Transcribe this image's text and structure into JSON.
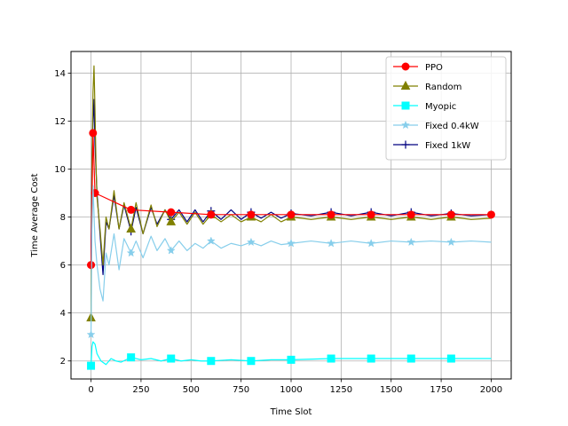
{
  "chart_data": {
    "type": "line",
    "xlabel": "Time Slot",
    "ylabel": "Time Average Cost",
    "xlim": [
      -100,
      2100
    ],
    "ylim": [
      1.25,
      14.9
    ],
    "xticks": [
      0,
      250,
      500,
      750,
      1000,
      1250,
      1500,
      1750,
      2000
    ],
    "yticks": [
      2,
      4,
      6,
      8,
      10,
      12,
      14
    ],
    "grid": true,
    "legend_position": "top-right",
    "series": [
      {
        "name": "PPO",
        "color": "#ff0000",
        "marker": "circle",
        "x": [
          0,
          10,
          20,
          200,
          400,
          600,
          800,
          1000,
          1200,
          1400,
          1600,
          1800,
          2000
        ],
        "y": [
          6.0,
          11.5,
          9.0,
          8.3,
          8.2,
          8.1,
          8.1,
          8.1,
          8.1,
          8.1,
          8.1,
          8.1,
          8.1
        ]
      },
      {
        "name": "Random",
        "color": "#808000",
        "marker": "triangle",
        "marker_x": [
          0,
          200,
          400,
          600,
          800,
          1000,
          1200,
          1400,
          1600,
          1800
        ],
        "x": [
          0,
          5,
          10,
          15,
          20,
          25,
          30,
          45,
          60,
          75,
          90,
          115,
          140,
          165,
          200,
          225,
          260,
          300,
          330,
          370,
          400,
          440,
          480,
          520,
          560,
          600,
          650,
          700,
          750,
          800,
          850,
          900,
          950,
          1000,
          1100,
          1200,
          1300,
          1400,
          1500,
          1600,
          1700,
          1800,
          1900,
          2000
        ],
        "y": [
          3.8,
          10.5,
          13.2,
          14.3,
          12.5,
          10.2,
          8.8,
          7.5,
          6.0,
          8.0,
          7.5,
          9.1,
          7.5,
          8.6,
          7.5,
          8.6,
          7.3,
          8.5,
          7.6,
          8.3,
          7.8,
          8.2,
          7.7,
          8.2,
          7.7,
          8.1,
          7.8,
          8.1,
          7.8,
          8.0,
          7.8,
          8.1,
          7.8,
          8.0,
          7.9,
          8.0,
          7.9,
          8.0,
          7.9,
          8.0,
          7.9,
          8.0,
          7.9,
          7.95
        ]
      },
      {
        "name": "Myopic",
        "color": "#00ffff",
        "marker": "square",
        "marker_x": [
          0,
          200,
          400,
          600,
          800,
          1000,
          1200,
          1400,
          1600,
          1800
        ],
        "x": [
          0,
          5,
          10,
          20,
          30,
          50,
          75,
          100,
          125,
          150,
          175,
          200,
          250,
          300,
          350,
          400,
          450,
          500,
          550,
          600,
          700,
          800,
          900,
          1000,
          1200,
          1400,
          1600,
          1800,
          2000
        ],
        "y": [
          1.8,
          2.6,
          2.8,
          2.7,
          2.3,
          2.0,
          1.85,
          2.1,
          2.0,
          1.95,
          2.05,
          2.15,
          2.05,
          2.1,
          2.0,
          2.1,
          2.0,
          2.05,
          2.0,
          2.0,
          2.05,
          2.0,
          2.05,
          2.05,
          2.1,
          2.1,
          2.1,
          2.1,
          2.1
        ]
      },
      {
        "name": "Fixed 0.4kW",
        "color": "#87ceeb",
        "marker": "star",
        "marker_x": [
          0,
          200,
          400,
          600,
          800,
          1000,
          1200,
          1400,
          1600,
          1800
        ],
        "x": [
          0,
          5,
          10,
          20,
          30,
          45,
          60,
          75,
          90,
          115,
          140,
          165,
          200,
          225,
          260,
          300,
          330,
          370,
          400,
          440,
          480,
          520,
          560,
          600,
          650,
          700,
          750,
          800,
          850,
          900,
          950,
          1000,
          1100,
          1200,
          1300,
          1400,
          1500,
          1600,
          1700,
          1800,
          1900,
          2000
        ],
        "y": [
          3.1,
          7.5,
          9.3,
          7.0,
          6.0,
          5.0,
          4.5,
          6.5,
          6.0,
          7.3,
          5.8,
          7.1,
          6.5,
          7.0,
          6.3,
          7.2,
          6.6,
          7.1,
          6.6,
          7.0,
          6.6,
          6.9,
          6.7,
          7.0,
          6.7,
          6.9,
          6.8,
          6.95,
          6.8,
          7.0,
          6.85,
          6.9,
          7.0,
          6.9,
          7.0,
          6.9,
          7.0,
          6.95,
          7.0,
          6.95,
          7.0,
          6.95
        ]
      },
      {
        "name": "Fixed 1kW",
        "color": "#000080",
        "marker": "plus",
        "marker_x": [
          0,
          200,
          400,
          600,
          800,
          1000,
          1200,
          1400,
          1600,
          1800
        ],
        "x": [
          0,
          5,
          10,
          15,
          20,
          25,
          30,
          45,
          60,
          75,
          90,
          115,
          140,
          165,
          200,
          225,
          260,
          300,
          330,
          370,
          400,
          440,
          480,
          520,
          560,
          600,
          650,
          700,
          750,
          800,
          850,
          900,
          950,
          1000,
          1100,
          1200,
          1300,
          1400,
          1500,
          1600,
          1700,
          1800,
          1900,
          2000
        ],
        "y": [
          6.0,
          10.5,
          12.0,
          12.9,
          11.0,
          10.0,
          9.0,
          7.3,
          5.6,
          7.8,
          7.5,
          8.9,
          7.5,
          8.5,
          7.4,
          8.4,
          7.3,
          8.4,
          7.7,
          8.3,
          7.9,
          8.3,
          7.8,
          8.3,
          7.8,
          8.25,
          7.9,
          8.3,
          7.9,
          8.2,
          7.95,
          8.2,
          7.95,
          8.15,
          8.05,
          8.2,
          8.05,
          8.2,
          8.05,
          8.2,
          8.05,
          8.15,
          8.05,
          8.1
        ]
      }
    ]
  }
}
